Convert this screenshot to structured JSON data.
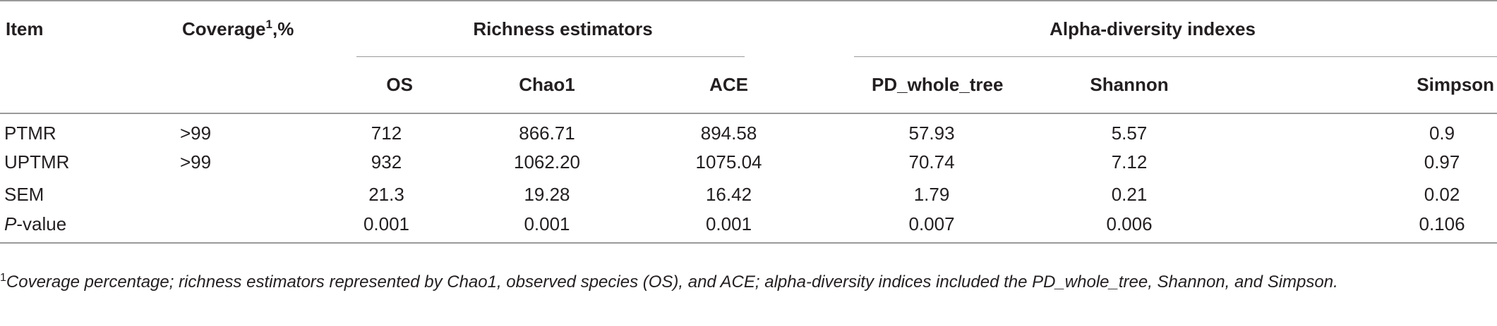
{
  "table": {
    "headers": {
      "item": "Item",
      "coverage": "Coverage",
      "coverage_sup": "1",
      "coverage_suffix": ",%",
      "richness_group": "Richness estimators",
      "alpha_group": "Alpha-diversity indexes",
      "os": "OS",
      "chao1": "Chao1",
      "ace": "ACE",
      "pd": "PD_whole_tree",
      "shannon": "Shannon",
      "simpson": "Simpson"
    },
    "rows": [
      {
        "item": "PTMR",
        "coverage": ">99",
        "os": "712",
        "chao1": "866.71",
        "ace": "894.58",
        "pd": "57.93",
        "shannon": "5.57",
        "simpson": "0.9"
      },
      {
        "item": "UPTMR",
        "coverage": ">99",
        "os": "932",
        "chao1": "1062.20",
        "ace": "1075.04",
        "pd": "70.74",
        "shannon": "7.12",
        "simpson": "0.97"
      },
      {
        "item": "SEM",
        "coverage": "",
        "os": "21.3",
        "chao1": "19.28",
        "ace": "16.42",
        "pd": "1.79",
        "shannon": "0.21",
        "simpson": "0.02"
      },
      {
        "item_italic": "P",
        "item": "-value",
        "coverage": "",
        "os": "0.001",
        "chao1": "0.001",
        "ace": "0.001",
        "pd": "0.007",
        "shannon": "0.006",
        "simpson": "0.106"
      }
    ]
  },
  "footnote": {
    "marker": "1",
    "text": "Coverage percentage; richness estimators represented by Chao1, observed species (OS), and ACE; alpha-diversity indices included the PD_whole_tree, Shannon, and Simpson."
  }
}
